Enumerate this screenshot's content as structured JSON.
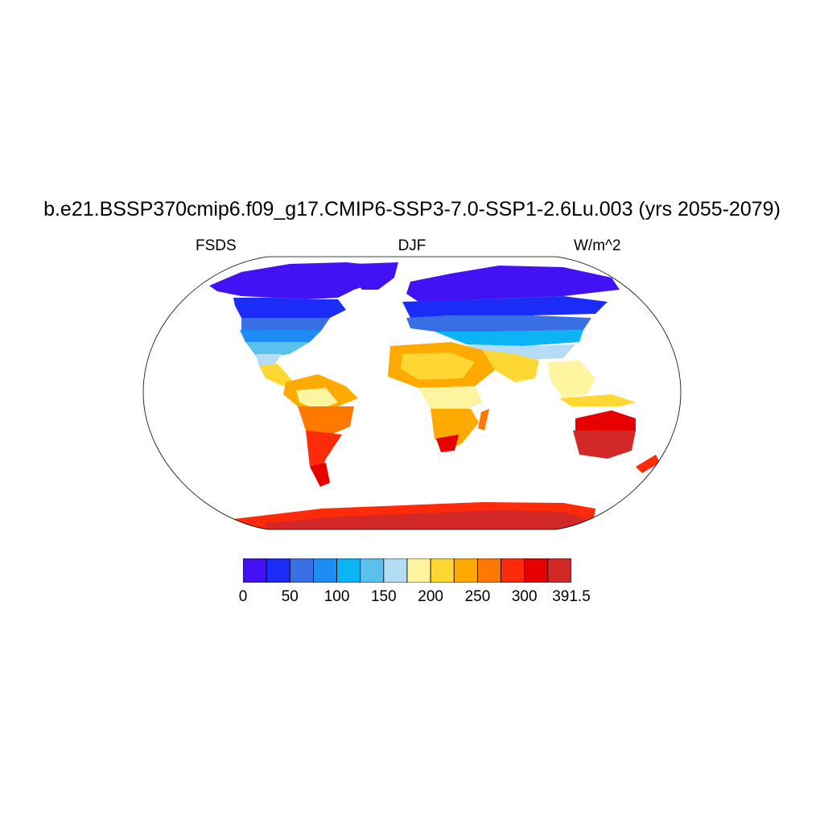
{
  "title": "b.e21.BSSP370cmip6.f09_g17.CMIP6-SSP3-7.0-SSP1-2.6Lu.003 (yrs 2055-2079)",
  "left_label": "FSDS",
  "center_label": "DJF",
  "right_label": "W/m^2",
  "colorbar": {
    "colors": [
      "#4212f5",
      "#1a2cf5",
      "#3a6ee5",
      "#1e8cf5",
      "#0ab4f5",
      "#5ac0ee",
      "#b4dcf4",
      "#fff5a0",
      "#ffd732",
      "#ffaa00",
      "#ff7800",
      "#ff2a0a",
      "#e60000",
      "#d22828"
    ],
    "labels": [
      "0",
      "50",
      "100",
      "150",
      "200",
      "250",
      "300",
      "391.5"
    ]
  }
}
